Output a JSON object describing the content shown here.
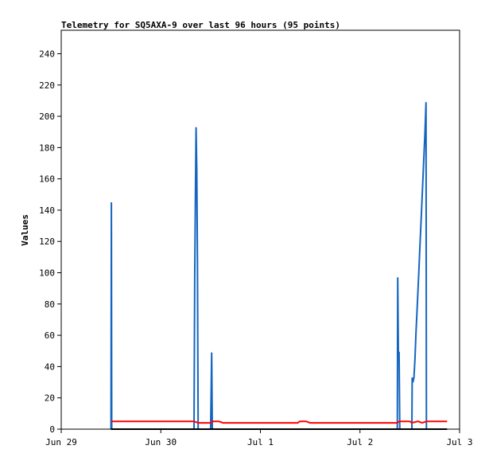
{
  "chart_data": {
    "type": "line",
    "title": "Telemetry for SQ5AXA-9 over last 96 hours (95 points)",
    "xlabel": "",
    "ylabel": "Values",
    "x_domain": [
      "Jun 29",
      "Jul 3"
    ],
    "x_ticks": [
      "Jun 29",
      "Jun 30",
      "Jul 1",
      "Jul 2",
      "Jul 3"
    ],
    "y_ticks": [
      0,
      20,
      40,
      60,
      80,
      100,
      120,
      140,
      160,
      180,
      200,
      220,
      240
    ],
    "ylim": [
      0,
      255
    ],
    "grid": false,
    "legend": "none",
    "series": [
      {
        "color": "#1565c0",
        "points": [
          [
            "2024-06-29T12:00",
            0
          ],
          [
            "2024-06-29T12:05",
            145
          ],
          [
            "2024-06-29T12:10",
            0
          ],
          [
            "2024-06-30T08:00",
            0
          ],
          [
            "2024-06-30T08:10",
            97
          ],
          [
            "2024-06-30T08:20",
            145
          ],
          [
            "2024-06-30T08:30",
            193
          ],
          [
            "2024-06-30T08:40",
            165
          ],
          [
            "2024-06-30T08:50",
            108
          ],
          [
            "2024-06-30T09:00",
            0
          ],
          [
            "2024-06-30T12:00",
            0
          ],
          [
            "2024-06-30T12:08",
            25
          ],
          [
            "2024-06-30T12:15",
            49
          ],
          [
            "2024-06-30T12:25",
            0
          ],
          [
            "2024-07-02T09:00",
            0
          ],
          [
            "2024-07-02T09:05",
            97
          ],
          [
            "2024-07-02T09:15",
            49
          ],
          [
            "2024-07-02T09:25",
            49
          ],
          [
            "2024-07-02T09:35",
            0
          ],
          [
            "2024-07-02T12:30",
            0
          ],
          [
            "2024-07-02T12:35",
            33
          ],
          [
            "2024-07-02T12:45",
            30
          ],
          [
            "2024-07-02T13:00",
            33
          ],
          [
            "2024-07-02T13:15",
            45
          ],
          [
            "2024-07-02T13:30",
            62
          ],
          [
            "2024-07-02T13:50",
            80
          ],
          [
            "2024-07-02T14:10",
            100
          ],
          [
            "2024-07-02T14:30",
            120
          ],
          [
            "2024-07-02T14:50",
            140
          ],
          [
            "2024-07-02T15:10",
            160
          ],
          [
            "2024-07-02T15:25",
            175
          ],
          [
            "2024-07-02T15:40",
            190
          ],
          [
            "2024-07-02T15:55",
            209
          ],
          [
            "2024-07-02T16:00",
            0
          ]
        ]
      },
      {
        "color": "#ff0000",
        "points": [
          [
            "2024-06-29T12:00",
            5
          ],
          [
            "2024-06-30T08:00",
            5
          ],
          [
            "2024-06-30T09:00",
            4
          ],
          [
            "2024-06-30T12:00",
            4
          ],
          [
            "2024-06-30T12:30",
            5
          ],
          [
            "2024-06-30T14:00",
            5
          ],
          [
            "2024-06-30T15:00",
            4
          ],
          [
            "2024-07-01T09:00",
            4
          ],
          [
            "2024-07-01T09:30",
            5
          ],
          [
            "2024-07-01T11:00",
            5
          ],
          [
            "2024-07-01T12:00",
            4
          ],
          [
            "2024-07-02T09:00",
            4
          ],
          [
            "2024-07-02T09:30",
            5
          ],
          [
            "2024-07-02T12:00",
            5
          ],
          [
            "2024-07-02T12:30",
            4
          ],
          [
            "2024-07-02T14:00",
            5
          ],
          [
            "2024-07-02T15:00",
            4
          ],
          [
            "2024-07-02T16:00",
            5
          ],
          [
            "2024-07-02T21:00",
            5
          ]
        ]
      },
      {
        "color": "#000000",
        "points": [
          [
            "2024-06-29T12:00",
            0
          ],
          [
            "2024-07-02T21:00",
            0
          ]
        ]
      }
    ]
  }
}
